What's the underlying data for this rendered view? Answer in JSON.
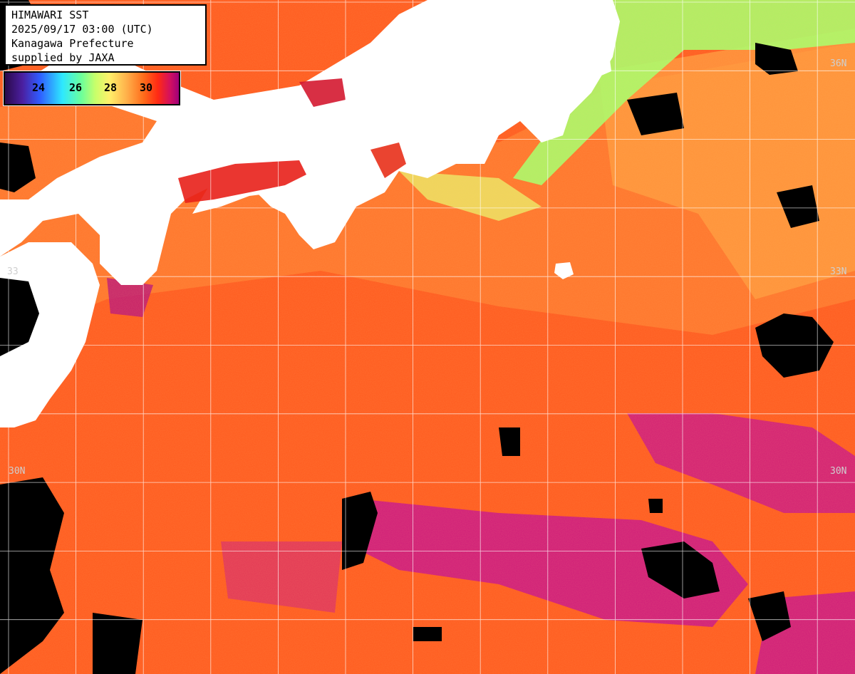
{
  "title": "HIMAWARI SST",
  "datetime": "2025/09/17 03:00 (UTC)",
  "region": "Kanagawa Prefecture",
  "credit": "supplied by JAXA",
  "legend": {
    "ticks": [
      "24",
      "26",
      "28",
      "30"
    ]
  },
  "lat_labels": {
    "n36_right": "36N",
    "n33_left": "33",
    "n33_right": "33N",
    "n30_left": "30N",
    "n30_right": "30N"
  },
  "colors": {
    "land": "#ffffff",
    "cloud_mask": "#000000",
    "grid": "#ffffff",
    "warm_sea": "#ff5a1e",
    "cool_coastal": "#9cff6a",
    "hot_sea": "#c8108a"
  }
}
